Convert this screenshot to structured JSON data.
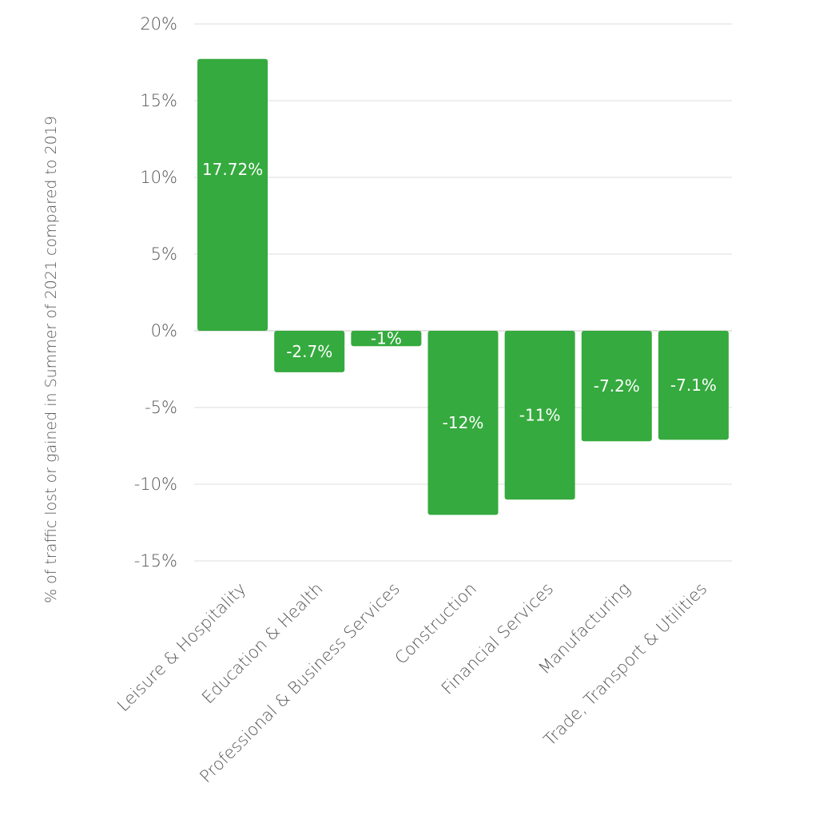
{
  "chart_data": {
    "type": "bar",
    "categories": [
      "Leisure & Hospitality",
      "Education & Health",
      "Professional & Business Services",
      "Construction",
      "Financial Services",
      "Manufacturing",
      "Trade, Transport & Utilities"
    ],
    "values": [
      17.72,
      -2.7,
      -1,
      -12,
      -11,
      -7.2,
      -7.1
    ],
    "data_labels": [
      "17.72%",
      "-2.7%",
      "-1%",
      "-12%",
      "-11%",
      "-7.2%",
      "-7.1%"
    ],
    "ylabel": "% of traffic lost or gained in Summer of 2021 compared to 2019",
    "ylim": [
      -15,
      20
    ],
    "yticks": [
      20,
      15,
      10,
      5,
      0,
      -5,
      -10,
      -15
    ],
    "ytick_labels": [
      "20%",
      "15%",
      "10%",
      "5%",
      "0%",
      "-5%",
      "-10%",
      "-15%"
    ],
    "grid": true,
    "legend": "none",
    "colors": {
      "bar": "#35aa3e",
      "grid": "#dcdcdc",
      "text": "#555555",
      "label": "#ffffff"
    }
  }
}
